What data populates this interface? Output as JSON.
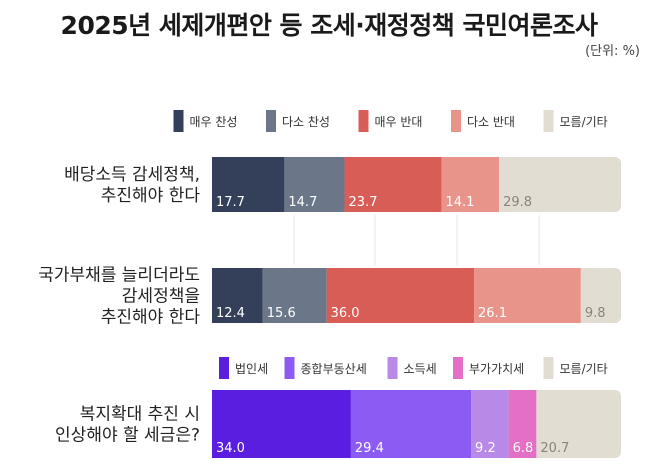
{
  "title": "2025년 세제개편안 등 조세·재정정책 국민여론조사",
  "unit_note": "(단위: %)",
  "chart_data": [
    {
      "type": "bar",
      "orientation": "horizontal",
      "stacked": true,
      "xlim": [
        0,
        100
      ],
      "legend": "top-right",
      "legend_items": [
        {
          "name": "매우 찬성",
          "color": "#34405a"
        },
        {
          "name": "다소 찬성",
          "color": "#6b7689"
        },
        {
          "name": "매우 반대",
          "color": "#d95d57"
        },
        {
          "name": "다소 반대",
          "color": "#e9948a"
        },
        {
          "name": "모름/기타",
          "color": "#e2ddd3"
        }
      ],
      "categories": [
        [
          "배당소득 감세정책,",
          "추진해야 한다"
        ],
        [
          "국가부채를 늘리더라도",
          "감세정책을",
          "추진해야 한다"
        ]
      ],
      "series": [
        {
          "name": "매우 찬성",
          "values": [
            17.7,
            12.4
          ]
        },
        {
          "name": "다소 찬성",
          "values": [
            14.7,
            15.6
          ]
        },
        {
          "name": "매우 반대",
          "values": [
            23.7,
            36.0
          ]
        },
        {
          "name": "다소 반대",
          "values": [
            14.1,
            26.1
          ]
        },
        {
          "name": "모름/기타",
          "values": [
            29.8,
            9.8
          ]
        }
      ]
    },
    {
      "type": "bar",
      "orientation": "horizontal",
      "stacked": true,
      "xlim": [
        0,
        100
      ],
      "legend": "top-right",
      "legend_items": [
        {
          "name": "법인세",
          "color": "#5a1ee0"
        },
        {
          "name": "종합부동산세",
          "color": "#8c5cf2"
        },
        {
          "name": "소득세",
          "color": "#b889e6"
        },
        {
          "name": "부가가치세",
          "color": "#e36fc7"
        },
        {
          "name": "모름/기타",
          "color": "#e2ddd3"
        }
      ],
      "categories": [
        [
          "복지확대 추진 시",
          "인상해야 할 세금은?"
        ]
      ],
      "series": [
        {
          "name": "법인세",
          "values": [
            34.0
          ]
        },
        {
          "name": "종합부동산세",
          "values": [
            29.4
          ]
        },
        {
          "name": "소득세",
          "values": [
            9.2
          ]
        },
        {
          "name": "부가가치세",
          "values": [
            6.8
          ]
        },
        {
          "name": "모름/기타",
          "values": [
            20.7
          ]
        }
      ]
    }
  ]
}
